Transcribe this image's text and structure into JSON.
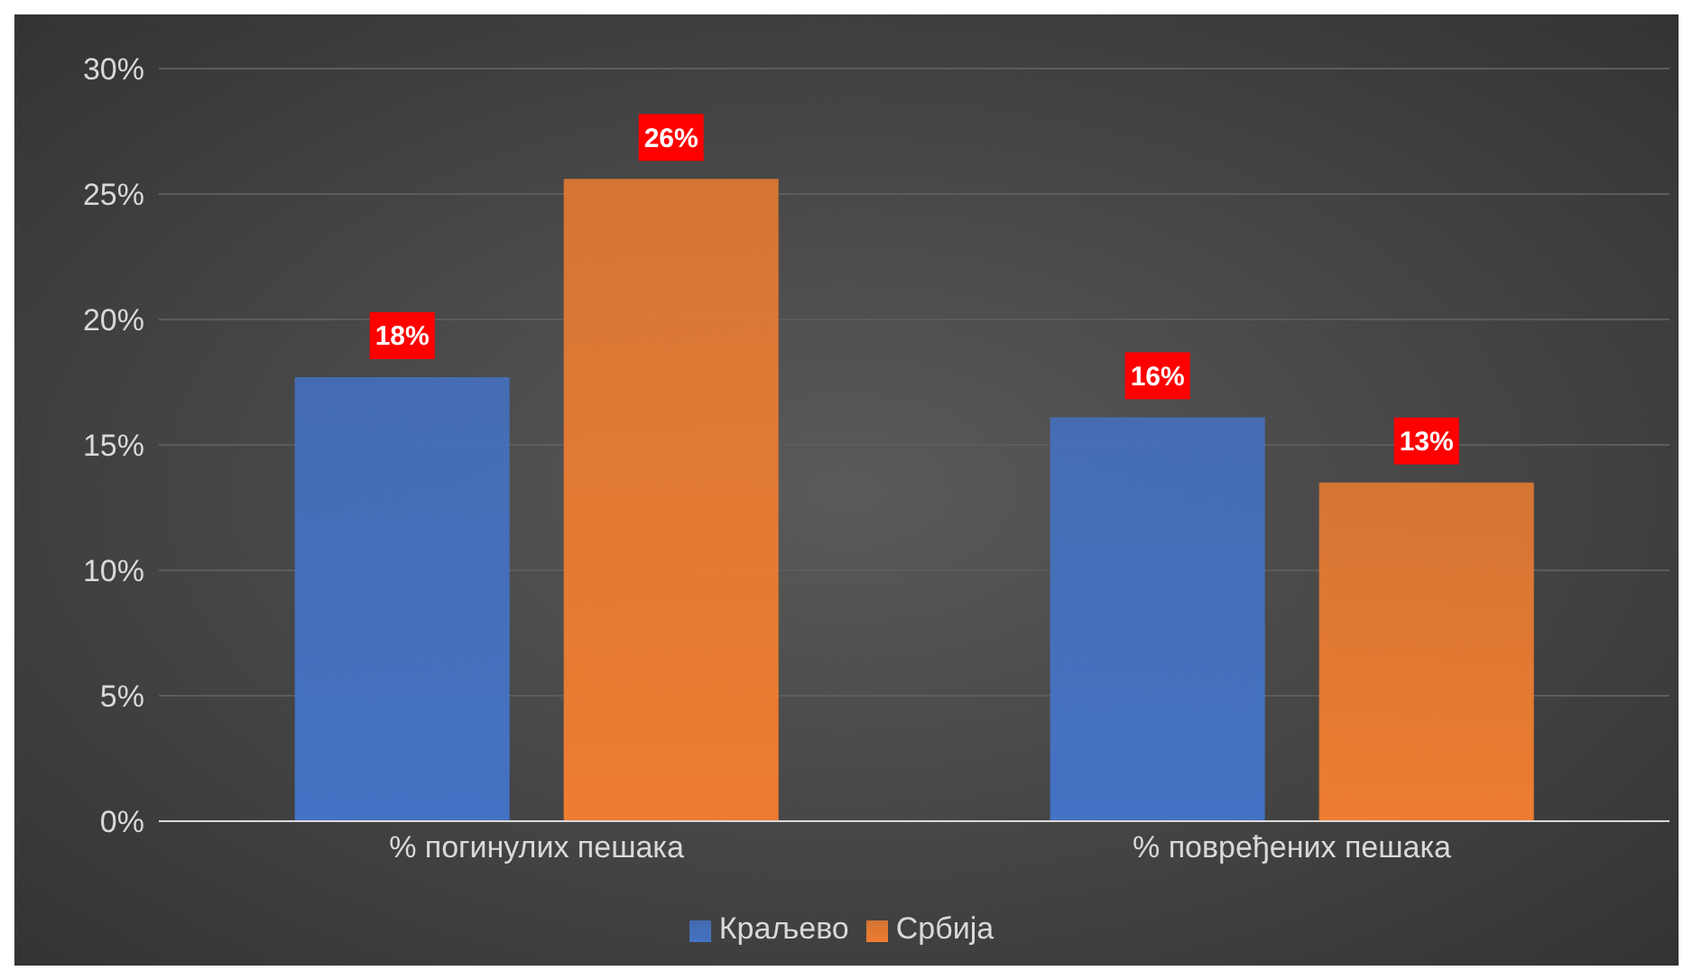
{
  "chart_data": {
    "type": "bar",
    "categories": [
      "% погинулих пешака",
      "% повређених пешака"
    ],
    "series": [
      {
        "name": "Краљево",
        "color": "#4472c4",
        "values": [
          17.7,
          16.1
        ],
        "value_labels": [
          "18%",
          "16%"
        ]
      },
      {
        "name": "Србија",
        "color": "#ed7d31",
        "values": [
          25.6,
          13.5
        ],
        "value_labels": [
          "26%",
          "13%"
        ]
      }
    ],
    "ylim": [
      0,
      30
    ],
    "yticks": [
      {
        "value": 0,
        "label": "0%"
      },
      {
        "value": 5,
        "label": "5%"
      },
      {
        "value": 10,
        "label": "10%"
      },
      {
        "value": 15,
        "label": "15%"
      },
      {
        "value": 20,
        "label": "20%"
      },
      {
        "value": 25,
        "label": "25%"
      },
      {
        "value": 30,
        "label": "30%"
      }
    ],
    "grid": "y",
    "legend": "bottom"
  }
}
